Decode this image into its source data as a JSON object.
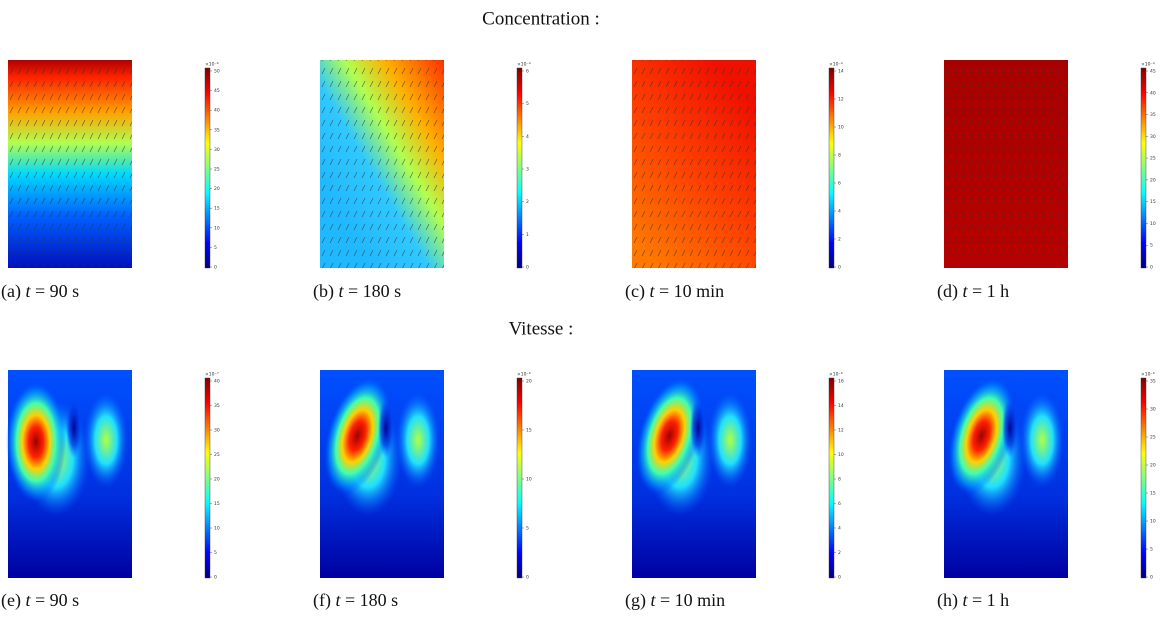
{
  "sections": [
    {
      "title": "Concentration :",
      "panels": [
        {
          "caption": {
            "label": "(a)",
            "var": "t",
            "rest": "= 90 s"
          },
          "colorbar": {
            "exponent": "×10⁻⁶",
            "ticks": [
              0,
              5,
              10,
              15,
              20,
              25,
              30,
              35,
              40,
              45,
              50
            ]
          }
        },
        {
          "caption": {
            "label": "(b)",
            "var": "t",
            "rest": "= 180 s"
          },
          "colorbar": {
            "exponent": "×10⁻⁴",
            "ticks": [
              0,
              1,
              2,
              3,
              4,
              5,
              6
            ]
          }
        },
        {
          "caption": {
            "label": "(c)",
            "var": "t",
            "rest": "= 10 min"
          },
          "colorbar": {
            "exponent": "×10⁻⁴",
            "ticks": [
              0,
              2,
              4,
              6,
              8,
              10,
              12,
              14
            ]
          }
        },
        {
          "caption": {
            "label": "(d)",
            "var": "t",
            "rest": "= 1 h"
          },
          "colorbar": {
            "exponent": "×10⁻⁴",
            "ticks": [
              0,
              5,
              10,
              15,
              20,
              25,
              30,
              35,
              40,
              45
            ]
          }
        }
      ]
    },
    {
      "title": "Vitesse :",
      "panels": [
        {
          "caption": {
            "label": "(e)",
            "var": "t",
            "rest": "= 90 s"
          },
          "colorbar": {
            "exponent": "×10⁻⁷",
            "ticks": [
              0,
              5,
              10,
              15,
              20,
              25,
              30,
              35,
              40
            ]
          }
        },
        {
          "caption": {
            "label": "(f)",
            "var": "t",
            "rest": "= 180 s"
          },
          "colorbar": {
            "exponent": "×10⁻⁶",
            "ticks": [
              0,
              5,
              10,
              15,
              20
            ]
          }
        },
        {
          "caption": {
            "label": "(g)",
            "var": "t",
            "rest": "= 10 min"
          },
          "colorbar": {
            "exponent": "×10⁻⁶",
            "ticks": [
              0,
              2,
              4,
              6,
              8,
              10,
              12,
              14,
              16
            ]
          }
        },
        {
          "caption": {
            "label": "(h)",
            "var": "t",
            "rest": "= 1 h"
          },
          "colorbar": {
            "exponent": "×10⁻⁶",
            "ticks": [
              0,
              5,
              10,
              15,
              20,
              25,
              30,
              35
            ]
          }
        }
      ]
    }
  ]
}
